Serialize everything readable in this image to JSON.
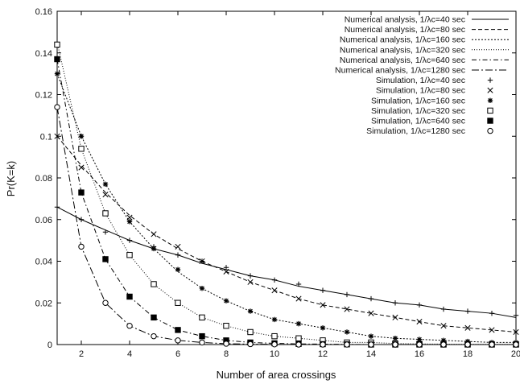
{
  "chart_data": {
    "type": "line",
    "title": "",
    "xlabel": "Number of area crossings",
    "ylabel": "Pr(K=k)",
    "xlim": [
      1,
      20
    ],
    "ylim": [
      0,
      0.16
    ],
    "xticks": [
      2,
      4,
      6,
      8,
      10,
      12,
      14,
      16,
      18,
      20
    ],
    "yticks": [
      0,
      0.02,
      0.04,
      0.06,
      0.08,
      0.1,
      0.12,
      0.14,
      0.16
    ],
    "grid": false,
    "legend_position": "top-right",
    "x": [
      1,
      2,
      3,
      4,
      5,
      6,
      7,
      8,
      9,
      10,
      11,
      12,
      13,
      14,
      15,
      16,
      17,
      18,
      19,
      20
    ],
    "series": [
      {
        "name": "Numerical analysis, 1/λc=40 sec",
        "kind": "line",
        "dash": "solid",
        "values": [
          0.066,
          0.06,
          0.055,
          0.05,
          0.046,
          0.043,
          0.039,
          0.036,
          0.033,
          0.031,
          0.028,
          0.026,
          0.024,
          0.022,
          0.02,
          0.019,
          0.017,
          0.016,
          0.015,
          0.013
        ]
      },
      {
        "name": "Numerical analysis, 1/λc=80 sec",
        "kind": "line",
        "dash": "dashed",
        "values": [
          0.1,
          0.086,
          0.073,
          0.062,
          0.053,
          0.046,
          0.04,
          0.035,
          0.03,
          0.026,
          0.022,
          0.019,
          0.017,
          0.015,
          0.013,
          0.011,
          0.009,
          0.008,
          0.007,
          0.006
        ]
      },
      {
        "name": "Numerical analysis, 1/λc=160 sec",
        "kind": "line",
        "dash": "dotted",
        "values": [
          0.13,
          0.1,
          0.077,
          0.059,
          0.046,
          0.035,
          0.027,
          0.021,
          0.016,
          0.012,
          0.01,
          0.008,
          0.006,
          0.004,
          0.003,
          0.0025,
          0.002,
          0.0015,
          0.001,
          0.001
        ]
      },
      {
        "name": "Numerical analysis, 1/λc=320 sec",
        "kind": "line",
        "dash": "finedot",
        "values": [
          0.145,
          0.094,
          0.063,
          0.043,
          0.029,
          0.02,
          0.013,
          0.009,
          0.006,
          0.004,
          0.003,
          0.002,
          0.001,
          0.001,
          0.0005,
          0.0003,
          0.0002,
          0.0001,
          0.0001,
          0.0001
        ]
      },
      {
        "name": "Numerical analysis, 1/λc=640 sec",
        "kind": "line",
        "dash": "dashdot",
        "values": [
          0.137,
          0.073,
          0.041,
          0.023,
          0.013,
          0.007,
          0.004,
          0.002,
          0.001,
          0.0006,
          0.0003,
          0.0002,
          0.0001,
          0,
          0,
          0,
          0,
          0,
          0,
          0
        ]
      },
      {
        "name": "Numerical analysis, 1/λc=1280 sec",
        "kind": "line",
        "dash": "longdashdot",
        "values": [
          0.114,
          0.047,
          0.02,
          0.009,
          0.004,
          0.002,
          0.001,
          0.0004,
          0.0002,
          0.0001,
          0,
          0,
          0,
          0,
          0,
          0,
          0,
          0,
          0,
          0
        ]
      },
      {
        "name": "Simulation, 1/λc=40 sec",
        "kind": "marker",
        "marker": "plus",
        "values": [
          0.066,
          0.06,
          0.054,
          0.05,
          0.047,
          0.043,
          0.04,
          0.037,
          0.033,
          0.031,
          0.029,
          0.026,
          0.024,
          0.022,
          0.02,
          0.019,
          0.017,
          0.016,
          0.015,
          0.014
        ]
      },
      {
        "name": "Simulation, 1/λc=80 sec",
        "kind": "marker",
        "marker": "cross",
        "values": [
          0.1,
          0.085,
          0.072,
          0.061,
          0.053,
          0.047,
          0.04,
          0.035,
          0.03,
          0.026,
          0.022,
          0.019,
          0.017,
          0.015,
          0.013,
          0.011,
          0.009,
          0.008,
          0.007,
          0.006
        ]
      },
      {
        "name": "Simulation, 1/λc=160 sec",
        "kind": "marker",
        "marker": "asterisk",
        "values": [
          0.13,
          0.1,
          0.077,
          0.059,
          0.046,
          0.036,
          0.027,
          0.021,
          0.016,
          0.012,
          0.01,
          0.008,
          0.006,
          0.004,
          0.003,
          0.0025,
          0.002,
          0.0015,
          0.001,
          0.001
        ]
      },
      {
        "name": "Simulation, 1/λc=320 sec",
        "kind": "marker",
        "marker": "square-open",
        "values": [
          0.144,
          0.094,
          0.063,
          0.043,
          0.029,
          0.02,
          0.013,
          0.009,
          0.006,
          0.004,
          0.003,
          0.002,
          0.001,
          0.001,
          0.0005,
          0.0003,
          0.0002,
          0.0001,
          0.0001,
          0.0001
        ]
      },
      {
        "name": "Simulation, 1/λc=640 sec",
        "kind": "marker",
        "marker": "square-filled",
        "values": [
          0.137,
          0.073,
          0.041,
          0.023,
          0.013,
          0.007,
          0.004,
          0.002,
          0.001,
          0.0006,
          0.0003,
          0.0002,
          0.0001,
          0,
          0,
          0,
          0,
          0,
          0,
          0
        ]
      },
      {
        "name": "Simulation, 1/λc=1280 sec",
        "kind": "marker",
        "marker": "circle-open",
        "values": [
          0.114,
          0.047,
          0.02,
          0.009,
          0.004,
          0.002,
          0.001,
          0.0004,
          0.0002,
          0.0001,
          0,
          0,
          0,
          0,
          0,
          0,
          0,
          0,
          0,
          0
        ]
      }
    ]
  }
}
